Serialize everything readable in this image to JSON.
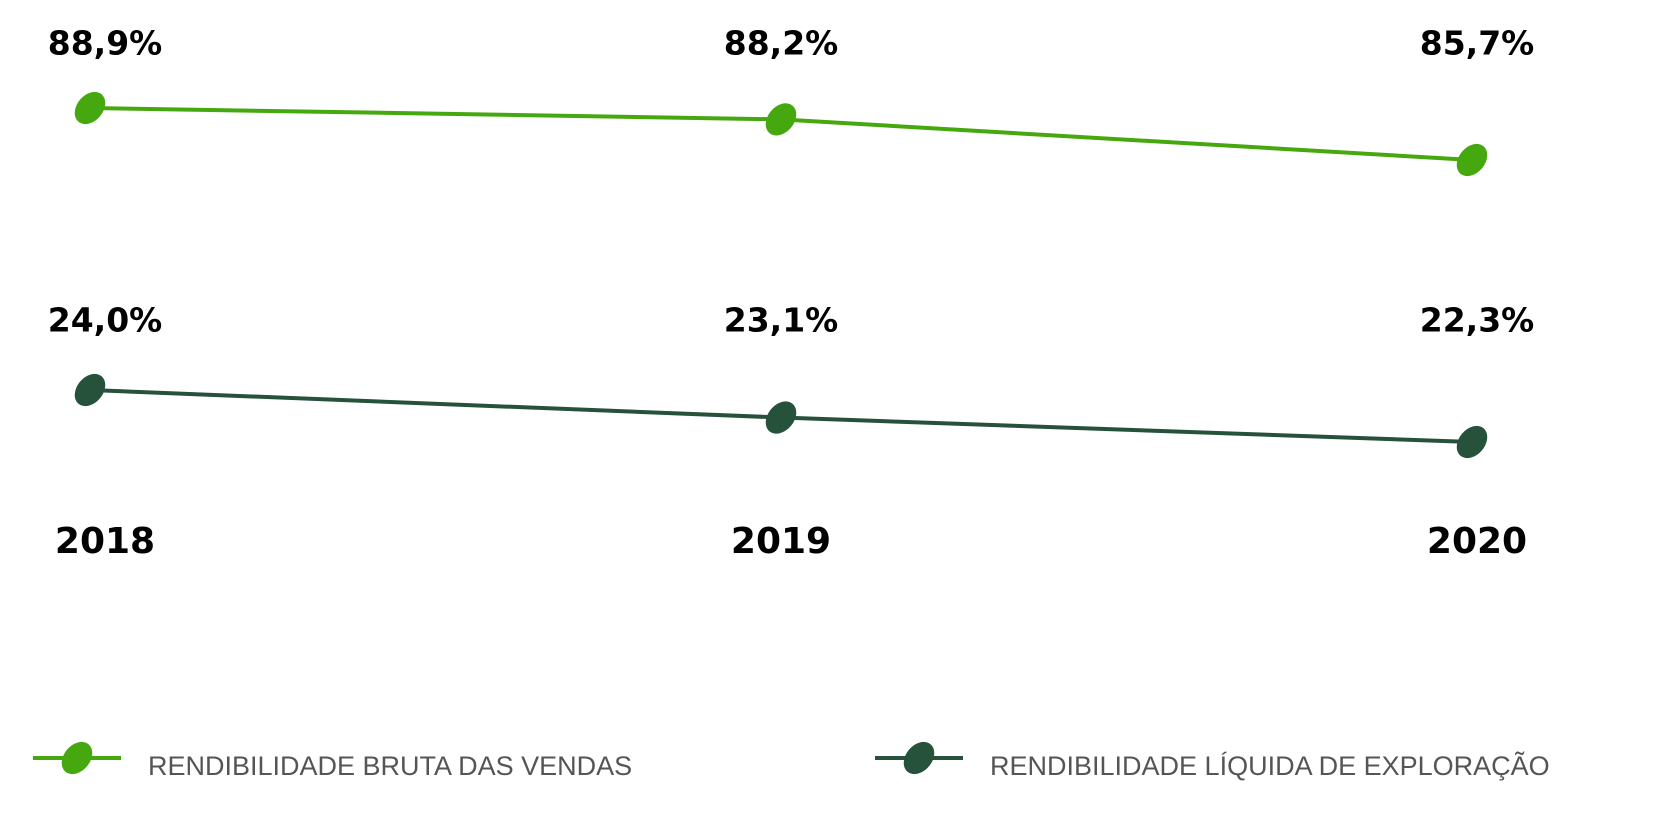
{
  "chart_data": {
    "type": "line",
    "categories": [
      "2018",
      "2019",
      "2020"
    ],
    "series": [
      {
        "name": "RENDIBILIDADE BRUTA DAS VENDAS",
        "color": "#46a80f",
        "values": [
          88.9,
          88.2,
          85.7
        ],
        "value_labels": [
          "88,9%",
          "88,2%",
          "85,7%"
        ]
      },
      {
        "name": "RENDIBILIDADE LÍQUIDA DE EXPLORAÇÃO",
        "color": "#26513b",
        "values": [
          24.0,
          23.1,
          22.3
        ],
        "value_labels": [
          "24,0%",
          "23,1%",
          "22,3%"
        ]
      }
    ]
  }
}
